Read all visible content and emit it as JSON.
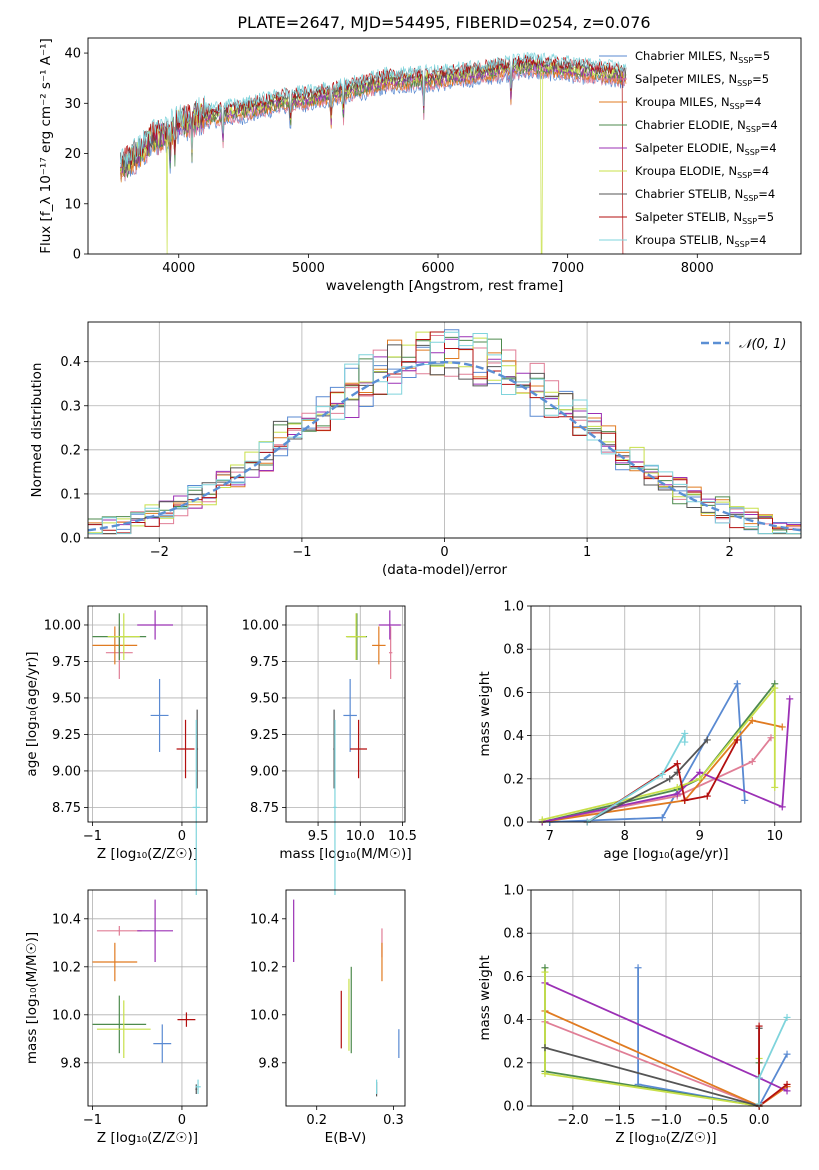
{
  "figure": {
    "title": "PLATE=2647, MJD=54495, FIBERID=0254, z=0.076"
  },
  "colors": {
    "Chabrier MILES": "#5a8ad2",
    "Salpeter MILES": "#e07e96",
    "Kroupa MILES": "#e07b21",
    "Chabrier ELODIE": "#4d8a4d",
    "Salpeter ELODIE": "#9b30b5",
    "Kroupa ELODIE": "#c8e04a",
    "Chabrier STELIB": "#555555",
    "Salpeter STELIB": "#b30f0f",
    "Kroupa STELIB": "#7fd4dc",
    "normal_curve": "#5b8fd4",
    "grid": "#b0b0b0"
  },
  "chart_data": [
    {
      "id": "spectrum",
      "type": "line",
      "title": "PLATE=2647, MJD=54495, FIBERID=0254, z=0.076",
      "xlabel": "wavelength [Angstrom, rest frame]",
      "ylabel": "Flux [f_λ 10⁻¹⁷ erg cm⁻² s⁻¹ A⁻¹]",
      "xlim": [
        3300,
        8800
      ],
      "ylim": [
        0,
        43
      ],
      "xticks": [
        4000,
        5000,
        6000,
        7000,
        8000
      ],
      "yticks": [
        0,
        10,
        20,
        30,
        40
      ],
      "grid": false,
      "legend_position": "top-right",
      "continuum": [
        [
          3550,
          17
        ],
        [
          3700,
          20
        ],
        [
          3800,
          23
        ],
        [
          3900,
          24
        ],
        [
          4000,
          26
        ],
        [
          4200,
          27.5
        ],
        [
          4500,
          28.5
        ],
        [
          4800,
          30.5
        ],
        [
          5000,
          31
        ],
        [
          5300,
          32.5
        ],
        [
          5600,
          34.5
        ],
        [
          6000,
          35
        ],
        [
          6300,
          36
        ],
        [
          6700,
          37.5
        ],
        [
          7000,
          36.8
        ],
        [
          7300,
          36
        ],
        [
          7450,
          35.5
        ]
      ],
      "series": [
        {
          "name": "Chabrier MILES",
          "label": "Chabrier MILES, N",
          "sub": "SSP",
          "n": "=5"
        },
        {
          "name": "Salpeter MILES",
          "label": "Salpeter MILES, N",
          "sub": "SSP",
          "n": "=5"
        },
        {
          "name": "Kroupa MILES",
          "label": "Kroupa MILES, N",
          "sub": "SSP",
          "n": "=4"
        },
        {
          "name": "Chabrier ELODIE",
          "label": "Chabrier ELODIE, N",
          "sub": "SSP",
          "n": "=4"
        },
        {
          "name": "Salpeter ELODIE",
          "label": "Salpeter ELODIE, N",
          "sub": "SSP",
          "n": "=4"
        },
        {
          "name": "Kroupa ELODIE",
          "label": "Kroupa ELODIE, N",
          "sub": "SSP",
          "n": "=4"
        },
        {
          "name": "Chabrier STELIB",
          "label": "Chabrier STELIB, N",
          "sub": "SSP",
          "n": "=4"
        },
        {
          "name": "Salpeter STELIB",
          "label": "Salpeter STELIB, N",
          "sub": "SSP",
          "n": "=5"
        },
        {
          "name": "Kroupa STELIB",
          "label": "Kroupa STELIB, N",
          "sub": "SSP",
          "n": "=4"
        }
      ]
    },
    {
      "id": "residuals",
      "type": "histogram",
      "xlabel": "(data-model)/error",
      "ylabel": "Normed distribution",
      "xlim": [
        -2.5,
        2.5
      ],
      "ylim": [
        0,
        0.49
      ],
      "xticks": [
        -2,
        -1,
        0,
        1,
        2
      ],
      "yticks": [
        0.0,
        0.1,
        0.2,
        0.3,
        0.4
      ],
      "grid": true,
      "legend_position": "top-right",
      "legend": "𝒩(0, 1)",
      "bin_width": 0.1
    },
    {
      "id": "age_vs_Z",
      "type": "errorbar",
      "xlabel": "Z [log₁₀(Z/Z☉)]",
      "ylabel": "age  [log₁₀(age/yr)]",
      "xlim": [
        -1.05,
        0.28
      ],
      "ylim": [
        8.65,
        10.13
      ],
      "xticks": [
        -1,
        0
      ],
      "yticks": [
        8.75,
        9.0,
        9.25,
        9.5,
        9.75,
        10.0
      ],
      "grid": true,
      "points": [
        {
          "series": "Chabrier MILES",
          "x": -0.25,
          "y": 9.38,
          "xerr": 0.1,
          "yerr": 0.25
        },
        {
          "series": "Salpeter MILES",
          "x": -0.7,
          "y": 9.81,
          "xerr": 0.15,
          "yerr": 0.18
        },
        {
          "series": "Kroupa MILES",
          "x": -0.75,
          "y": 9.86,
          "xerr": 0.25,
          "yerr": 0.13
        },
        {
          "series": "Chabrier ELODIE",
          "x": -0.7,
          "y": 9.92,
          "xerr": 0.3,
          "yerr": 0.16
        },
        {
          "series": "Salpeter ELODIE",
          "x": -0.3,
          "y": 10.0,
          "xerr": 0.2,
          "yerr": 0.1
        },
        {
          "series": "Kroupa ELODIE",
          "x": -0.65,
          "y": 9.92,
          "xerr": 0.18,
          "yerr": 0.16
        },
        {
          "series": "Chabrier STELIB",
          "x": 0.17,
          "y": 9.15,
          "xerr": 0.01,
          "yerr": 0.27
        },
        {
          "series": "Salpeter STELIB",
          "x": 0.04,
          "y": 9.15,
          "xerr": 0.1,
          "yerr": 0.2
        },
        {
          "series": "Kroupa STELIB",
          "x": 0.16,
          "y": 8.75,
          "xerr": 0.04,
          "yerr": 0.6
        }
      ]
    },
    {
      "id": "age_vs_mass",
      "type": "errorbar",
      "xlabel": "mass [log₁₀(M/M☉)]",
      "ylabel": "",
      "xlim": [
        9.12,
        10.53
      ],
      "ylim": [
        8.65,
        10.13
      ],
      "xticks": [
        9.5,
        10.0,
        10.5
      ],
      "yticks": [
        8.75,
        9.0,
        9.25,
        9.5,
        9.75,
        10.0
      ],
      "grid": true,
      "points": [
        {
          "series": "Chabrier MILES",
          "x": 9.88,
          "y": 9.38,
          "xerr": 0.08,
          "yerr": 0.25
        },
        {
          "series": "Salpeter MILES",
          "x": 10.36,
          "y": 9.81,
          "xerr": 0.02,
          "yerr": 0.18
        },
        {
          "series": "Kroupa MILES",
          "x": 10.22,
          "y": 9.86,
          "xerr": 0.08,
          "yerr": 0.13
        },
        {
          "series": "Chabrier ELODIE",
          "x": 9.96,
          "y": 9.92,
          "xerr": 0.12,
          "yerr": 0.16
        },
        {
          "series": "Salpeter ELODIE",
          "x": 10.35,
          "y": 10.0,
          "xerr": 0.13,
          "yerr": 0.1
        },
        {
          "series": "Kroupa ELODIE",
          "x": 9.95,
          "y": 9.92,
          "xerr": 0.12,
          "yerr": 0.16
        },
        {
          "series": "Chabrier STELIB",
          "x": 9.69,
          "y": 9.15,
          "xerr": 0.01,
          "yerr": 0.27
        },
        {
          "series": "Salpeter STELIB",
          "x": 9.98,
          "y": 9.15,
          "xerr": 0.1,
          "yerr": 0.2
        },
        {
          "series": "Kroupa STELIB",
          "x": 9.7,
          "y": 8.75,
          "xerr": 0.02,
          "yerr": 0.6
        }
      ]
    },
    {
      "id": "weight_vs_age",
      "type": "line",
      "xlabel": "age  [log₁₀(age/yr)]",
      "ylabel": "mass weight",
      "xlim": [
        6.75,
        10.35
      ],
      "ylim": [
        0,
        1.0
      ],
      "xticks": [
        7,
        8,
        9,
        10
      ],
      "yticks": [
        0.0,
        0.2,
        0.4,
        0.6,
        0.8,
        1.0
      ],
      "grid": true,
      "series": [
        {
          "name": "Chabrier MILES",
          "x": [
            7.0,
            8.5,
            9.5,
            9.6
          ],
          "y": [
            0.0,
            0.02,
            0.64,
            0.1
          ]
        },
        {
          "name": "Salpeter MILES",
          "x": [
            6.9,
            8.7,
            9.7,
            9.95
          ],
          "y": [
            0.0,
            0.12,
            0.28,
            0.39
          ]
        },
        {
          "name": "Kroupa MILES",
          "x": [
            6.9,
            8.8,
            9.7,
            10.1
          ],
          "y": [
            0.0,
            0.1,
            0.47,
            0.44
          ]
        },
        {
          "name": "Chabrier ELODIE",
          "x": [
            6.9,
            8.7,
            9.0,
            10.0
          ],
          "y": [
            0.0,
            0.15,
            0.2,
            0.64
          ]
        },
        {
          "name": "Salpeter ELODIE",
          "x": [
            6.9,
            8.7,
            9.0,
            10.1,
            10.2
          ],
          "y": [
            0.0,
            0.13,
            0.23,
            0.07,
            0.57
          ]
        },
        {
          "name": "Kroupa ELODIE",
          "x": [
            6.9,
            8.7,
            9.0,
            10.0,
            10.0
          ],
          "y": [
            0.01,
            0.16,
            0.2,
            0.62,
            0.16
          ]
        },
        {
          "name": "Chabrier STELIB",
          "x": [
            7.5,
            8.6,
            8.7,
            9.1
          ],
          "y": [
            0.0,
            0.2,
            0.23,
            0.38
          ]
        },
        {
          "name": "Salpeter STELIB",
          "x": [
            7.5,
            8.7,
            8.8,
            9.1,
            9.5
          ],
          "y": [
            0.0,
            0.27,
            0.1,
            0.12,
            0.38
          ]
        },
        {
          "name": "Kroupa STELIB",
          "x": [
            7.5,
            8.5,
            8.8,
            8.8
          ],
          "y": [
            0.0,
            0.22,
            0.41,
            0.37
          ]
        }
      ]
    },
    {
      "id": "mass_vs_Z",
      "type": "errorbar",
      "xlabel": "Z [log₁₀(Z/Z☉)]",
      "ylabel": "mass [log₁₀(M/M☉)]",
      "xlim": [
        -1.05,
        0.28
      ],
      "ylim": [
        9.62,
        10.52
      ],
      "xticks": [
        -1,
        0
      ],
      "yticks": [
        9.8,
        10.0,
        10.2,
        10.4
      ],
      "grid": true,
      "points": [
        {
          "series": "Chabrier MILES",
          "x": -0.22,
          "y": 9.88,
          "xerr": 0.1,
          "yerr": 0.08
        },
        {
          "series": "Salpeter MILES",
          "x": -0.7,
          "y": 10.35,
          "xerr": 0.25,
          "yerr": 0.02
        },
        {
          "series": "Kroupa MILES",
          "x": -0.75,
          "y": 10.22,
          "xerr": 0.25,
          "yerr": 0.08
        },
        {
          "series": "Chabrier ELODIE",
          "x": -0.7,
          "y": 9.96,
          "xerr": 0.3,
          "yerr": 0.12
        },
        {
          "series": "Salpeter ELODIE",
          "x": -0.3,
          "y": 10.35,
          "xerr": 0.2,
          "yerr": 0.13
        },
        {
          "series": "Kroupa ELODIE",
          "x": -0.65,
          "y": 9.94,
          "xerr": 0.3,
          "yerr": 0.12
        },
        {
          "series": "Chabrier STELIB",
          "x": 0.16,
          "y": 9.69,
          "xerr": 0.01,
          "yerr": 0.02
        },
        {
          "series": "Salpeter STELIB",
          "x": 0.05,
          "y": 9.98,
          "xerr": 0.1,
          "yerr": 0.03
        },
        {
          "series": "Kroupa STELIB",
          "x": 0.18,
          "y": 9.7,
          "xerr": 0.03,
          "yerr": 0.03
        }
      ]
    },
    {
      "id": "mass_vs_ebv",
      "type": "errorbar",
      "xlabel": "E(B-V)",
      "ylabel": "",
      "xlim": [
        0.16,
        0.315
      ],
      "ylim": [
        9.62,
        10.52
      ],
      "xticks": [
        0.2,
        0.3
      ],
      "yticks": [
        9.8,
        10.0,
        10.2,
        10.4
      ],
      "grid": false,
      "points": [
        {
          "series": "Chabrier MILES",
          "x": 0.307,
          "y": 9.88,
          "xerr": 0.0,
          "yerr": 0.06
        },
        {
          "series": "Salpeter MILES",
          "x": 0.285,
          "y": 10.3,
          "xerr": 0.0,
          "yerr": 0.06
        },
        {
          "series": "Kroupa MILES",
          "x": 0.285,
          "y": 10.22,
          "xerr": 0.0,
          "yerr": 0.08
        },
        {
          "series": "Chabrier ELODIE",
          "x": 0.245,
          "y": 10.02,
          "xerr": 0.0,
          "yerr": 0.18
        },
        {
          "series": "Salpeter ELODIE",
          "x": 0.17,
          "y": 10.35,
          "xerr": 0.0,
          "yerr": 0.13
        },
        {
          "series": "Kroupa ELODIE",
          "x": 0.242,
          "y": 10.0,
          "xerr": 0.0,
          "yerr": 0.15
        },
        {
          "series": "Chabrier STELIB",
          "x": 0.278,
          "y": 9.69,
          "xerr": 0.0,
          "yerr": 0.03
        },
        {
          "series": "Salpeter STELIB",
          "x": 0.232,
          "y": 9.98,
          "xerr": 0.0,
          "yerr": 0.12
        },
        {
          "series": "Kroupa STELIB",
          "x": 0.278,
          "y": 9.7,
          "xerr": 0.0,
          "yerr": 0.03
        }
      ]
    },
    {
      "id": "weight_vs_Z",
      "type": "line",
      "xlabel": "Z [log₁₀(Z/Z☉)]",
      "ylabel": "mass weight",
      "xlim": [
        -2.45,
        0.45
      ],
      "ylim": [
        0,
        1.0
      ],
      "xticks": [
        -2.0,
        -1.5,
        -1.0,
        -0.5,
        0.0
      ],
      "yticks": [
        0.0,
        0.2,
        0.4,
        0.6,
        0.8,
        1.0
      ],
      "grid": true,
      "series": [
        {
          "name": "Chabrier MILES",
          "x": [
            -1.3,
            -1.3,
            0.0,
            0.3
          ],
          "y": [
            0.64,
            0.1,
            0.0,
            0.24
          ]
        },
        {
          "name": "Salpeter MILES",
          "x": [
            -2.3,
            0.0,
            0.3
          ],
          "y": [
            0.39,
            0.0,
            0.09
          ]
        },
        {
          "name": "Kroupa MILES",
          "x": [
            -2.3,
            0.0,
            0.3
          ],
          "y": [
            0.44,
            0.0,
            0.09
          ]
        },
        {
          "name": "Chabrier ELODIE",
          "x": [
            -2.3,
            -2.3,
            0.0,
            0.0
          ],
          "y": [
            0.64,
            0.16,
            0.0,
            0.2
          ]
        },
        {
          "name": "Salpeter ELODIE",
          "x": [
            -2.3,
            0.0,
            0.3
          ],
          "y": [
            0.57,
            0.13,
            0.07
          ]
        },
        {
          "name": "Kroupa ELODIE",
          "x": [
            -2.3,
            -2.3,
            0.0,
            0.0
          ],
          "y": [
            0.62,
            0.15,
            0.0,
            0.22
          ]
        },
        {
          "name": "Chabrier STELIB",
          "x": [
            -2.3,
            0.0,
            0.0
          ],
          "y": [
            0.27,
            0.0,
            0.36
          ]
        },
        {
          "name": "Salpeter STELIB",
          "x": [
            0.0,
            0.0,
            0.3
          ],
          "y": [
            0.37,
            0.0,
            0.1
          ]
        },
        {
          "name": "Kroupa STELIB",
          "x": [
            0.0,
            0.0,
            0.3
          ],
          "y": [
            0.01,
            0.13,
            0.41
          ]
        }
      ]
    }
  ]
}
